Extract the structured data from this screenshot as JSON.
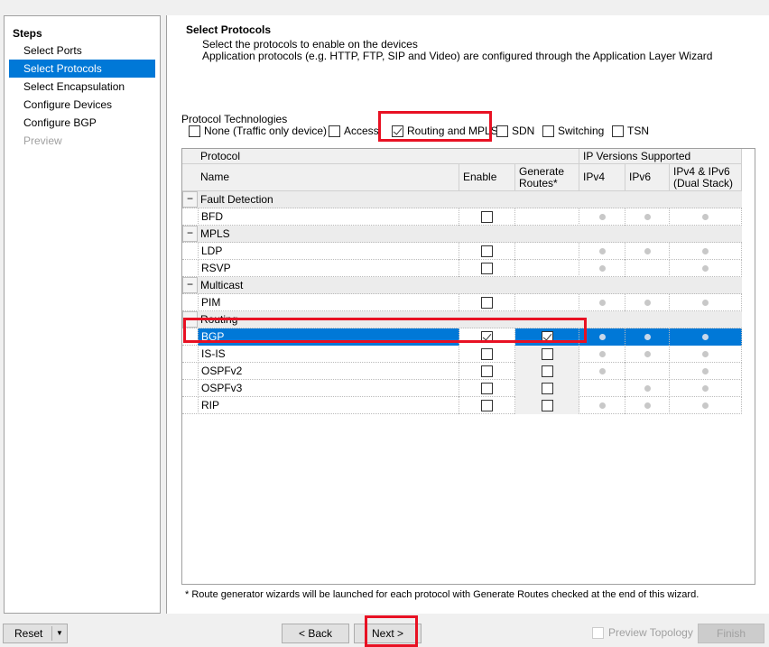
{
  "steps": {
    "title": "Steps",
    "items": [
      {
        "label": "Select Ports",
        "state": "normal"
      },
      {
        "label": "Select Protocols",
        "state": "selected"
      },
      {
        "label": "Select Encapsulation",
        "state": "normal"
      },
      {
        "label": "Configure Devices",
        "state": "normal"
      },
      {
        "label": "Configure BGP",
        "state": "normal"
      },
      {
        "label": "Preview",
        "state": "disabled"
      }
    ]
  },
  "header": {
    "title": "Select Protocols",
    "line1": "Select the protocols to enable on the devices",
    "line2": "Application protocols (e.g. HTTP, FTP, SIP and Video) are configured through the Application Layer Wizard"
  },
  "technologies": {
    "legend": "Protocol Technologies",
    "options": [
      {
        "label": "None (Traffic only device)",
        "checked": false
      },
      {
        "label": "Access",
        "checked": false
      },
      {
        "label": "Routing and MPLS",
        "checked": true
      },
      {
        "label": "SDN",
        "checked": false
      },
      {
        "label": "Switching",
        "checked": false
      },
      {
        "label": "TSN",
        "checked": false
      }
    ]
  },
  "grid": {
    "headers": {
      "protocol": "Protocol",
      "ip_versions": "IP Versions Supported",
      "name": "Name",
      "enable": "Enable",
      "generate": "Generate Routes*",
      "ipv4": "IPv4",
      "ipv6": "IPv6",
      "dual": "IPv4 & IPv6 (Dual Stack)"
    },
    "rows": [
      {
        "group": "Fault Detection"
      },
      {
        "name": "BFD",
        "enable": false,
        "generate": null,
        "ipv4": true,
        "ipv6": true,
        "dual": true
      },
      {
        "group": "MPLS"
      },
      {
        "name": "LDP",
        "enable": false,
        "generate": null,
        "ipv4": true,
        "ipv6": true,
        "dual": true
      },
      {
        "name": "RSVP",
        "enable": false,
        "generate": null,
        "ipv4": true,
        "ipv6": false,
        "dual": true
      },
      {
        "group": "Multicast"
      },
      {
        "name": "PIM",
        "enable": false,
        "generate": null,
        "ipv4": true,
        "ipv6": true,
        "dual": true
      },
      {
        "group": "Routing"
      },
      {
        "name": "BGP",
        "enable": true,
        "generate": true,
        "ipv4": true,
        "ipv6": true,
        "dual": true,
        "selected": true
      },
      {
        "name": "IS-IS",
        "enable": false,
        "generate": false,
        "ipv4": true,
        "ipv6": true,
        "dual": true
      },
      {
        "name": "OSPFv2",
        "enable": false,
        "generate": false,
        "ipv4": true,
        "ipv6": false,
        "dual": true
      },
      {
        "name": "OSPFv3",
        "enable": false,
        "generate": false,
        "ipv4": false,
        "ipv6": true,
        "dual": true
      },
      {
        "name": "RIP",
        "enable": false,
        "generate": false,
        "ipv4": true,
        "ipv6": true,
        "dual": true
      }
    ]
  },
  "note": "* Route generator wizards will be launched for each protocol with Generate Routes checked at the end of this wizard.",
  "footer": {
    "reset": "Reset",
    "back": "< Back",
    "next": "Next >",
    "preview_topology": "Preview Topology",
    "finish": "Finish"
  },
  "colors": {
    "selection": "#0078d7",
    "highlight": "#e81123"
  }
}
